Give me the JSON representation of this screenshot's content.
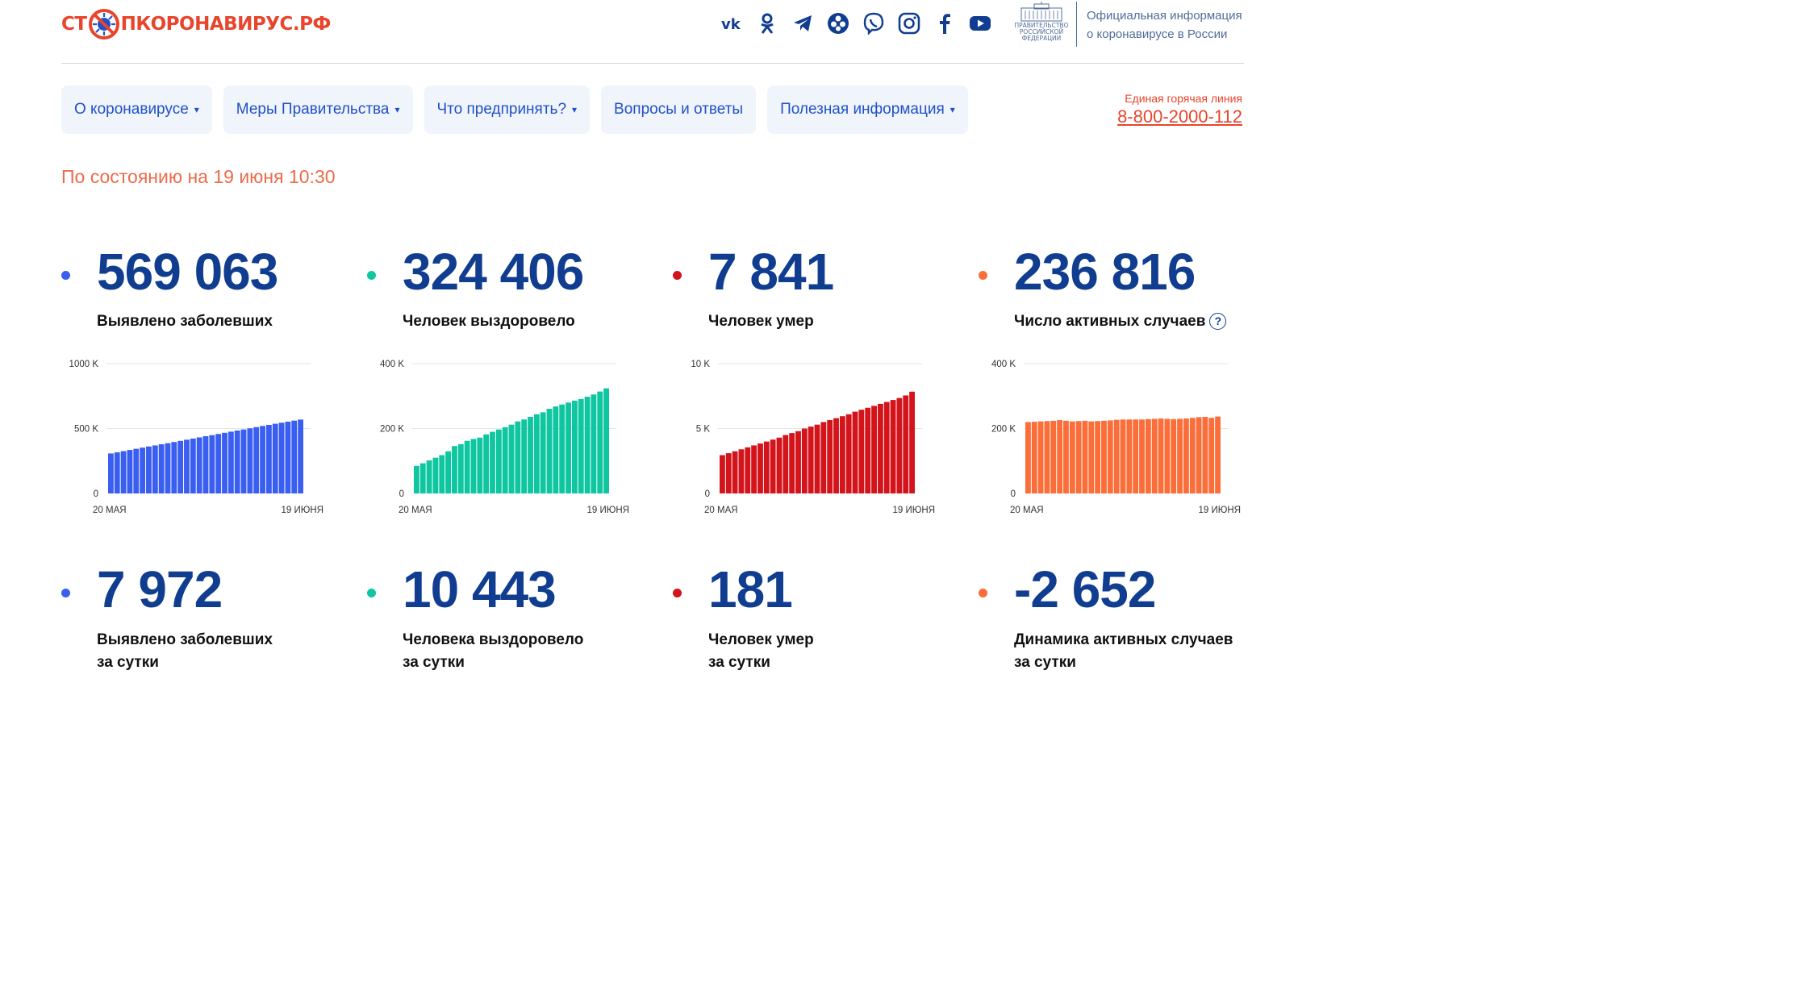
{
  "header": {
    "logo": {
      "part1": "СТ",
      "part2": "ПКОРОНАВИРУС",
      "part3": ".РФ"
    },
    "socials": [
      {
        "name": "vk-icon"
      },
      {
        "name": "odnoklassniki-icon"
      },
      {
        "name": "telegram-icon"
      },
      {
        "name": "yandex-zen-icon"
      },
      {
        "name": "viber-icon"
      },
      {
        "name": "instagram-icon"
      },
      {
        "name": "facebook-icon"
      },
      {
        "name": "youtube-icon"
      }
    ],
    "gov_logo_text": [
      "ПРАВИТЕЛЬСТВО",
      "РОССИЙСКОЙ",
      "ФЕДЕРАЦИИ"
    ],
    "official_info": [
      "Официальная информация",
      "о коронавирусе в России"
    ]
  },
  "nav": {
    "items": [
      {
        "label": "О коронавирусе",
        "dropdown": true
      },
      {
        "label": "Меры Правительства",
        "dropdown": true
      },
      {
        "label": "Что предпринять?",
        "dropdown": true
      },
      {
        "label": "Вопросы и ответы",
        "dropdown": false
      },
      {
        "label": "Полезная информация",
        "dropdown": true
      }
    ],
    "caret": "▾"
  },
  "hotline": {
    "label": "Единая горячая линия",
    "phone": "8-800-2000-112"
  },
  "as_of": "По состоянию на 19 июня 10:30",
  "totals": [
    {
      "value": "569 063",
      "label": "Выявлено заболевших",
      "color": "#3a5ef0"
    },
    {
      "value": "324 406",
      "label": "Человек выздоровело",
      "color": "#0ec6a0"
    },
    {
      "value": "7 841",
      "label": "Человек умер",
      "color": "#d3141b"
    },
    {
      "value": "236 816",
      "label": "Число активных случаев",
      "color": "#fb6e3a"
    }
  ],
  "help_symbol": "?",
  "daily": [
    {
      "value": "7 972",
      "label1": "Выявлено заболевших",
      "label2": "за сутки",
      "color": "#3a5ef0"
    },
    {
      "value": "10 443",
      "label1": "Человека выздоровело",
      "label2": "за сутки",
      "color": "#0ec6a0"
    },
    {
      "value": "181",
      "label1": "Человек умер",
      "label2": "за сутки",
      "color": "#d3141b"
    },
    {
      "value": "-2 652",
      "label1": "Динамика активных случаев",
      "label2": "за сутки",
      "color": "#fb6e3a"
    }
  ],
  "chart_data": [
    {
      "type": "bar",
      "yticks": [
        "0",
        "500 K",
        "1000 K"
      ],
      "ylim": [
        0,
        1000
      ],
      "x_start": "20 МАЯ",
      "x_end": "19 ИЮНЯ",
      "color": "#3a5ef0",
      "values": [
        308,
        317,
        326,
        335,
        344,
        353,
        362,
        370,
        379,
        387,
        396,
        405,
        414,
        423,
        432,
        441,
        449,
        458,
        467,
        476,
        485,
        493,
        502,
        511,
        520,
        528,
        537,
        545,
        553,
        561,
        569
      ]
    },
    {
      "type": "bar",
      "yticks": [
        "0",
        "200 K",
        "400 K"
      ],
      "ylim": [
        0,
        400
      ],
      "x_start": "20 МАЯ",
      "x_end": "19 ИЮНЯ",
      "color": "#0ec6a0",
      "values": [
        85,
        93,
        102,
        110,
        118,
        130,
        146,
        152,
        162,
        168,
        172,
        182,
        190,
        197,
        204,
        212,
        222,
        228,
        236,
        244,
        250,
        261,
        268,
        274,
        280,
        286,
        291,
        298,
        305,
        314,
        324
      ]
    },
    {
      "type": "bar",
      "yticks": [
        "0",
        "5 K",
        "10 K"
      ],
      "ylim": [
        0,
        10
      ],
      "x_start": "20 МАЯ",
      "x_end": "19 ИЮНЯ",
      "color": "#d3141b",
      "values": [
        2.95,
        3.1,
        3.25,
        3.4,
        3.55,
        3.7,
        3.85,
        4.0,
        4.15,
        4.3,
        4.5,
        4.65,
        4.8,
        5.0,
        5.15,
        5.3,
        5.5,
        5.65,
        5.8,
        5.95,
        6.1,
        6.3,
        6.45,
        6.6,
        6.75,
        6.9,
        7.05,
        7.2,
        7.35,
        7.55,
        7.84
      ]
    },
    {
      "type": "bar",
      "yticks": [
        "0",
        "200 K",
        "400 K"
      ],
      "ylim": [
        0,
        400
      ],
      "x_start": "20 МАЯ",
      "x_end": "19 ИЮНЯ",
      "color": "#fb6e3a",
      "values": [
        220,
        221,
        222,
        223,
        224,
        226,
        224,
        222,
        223,
        224,
        222,
        223,
        224,
        225,
        227,
        228,
        228,
        228,
        228,
        229,
        230,
        231,
        230,
        229,
        230,
        231,
        233,
        235,
        236,
        233,
        237
      ]
    }
  ]
}
